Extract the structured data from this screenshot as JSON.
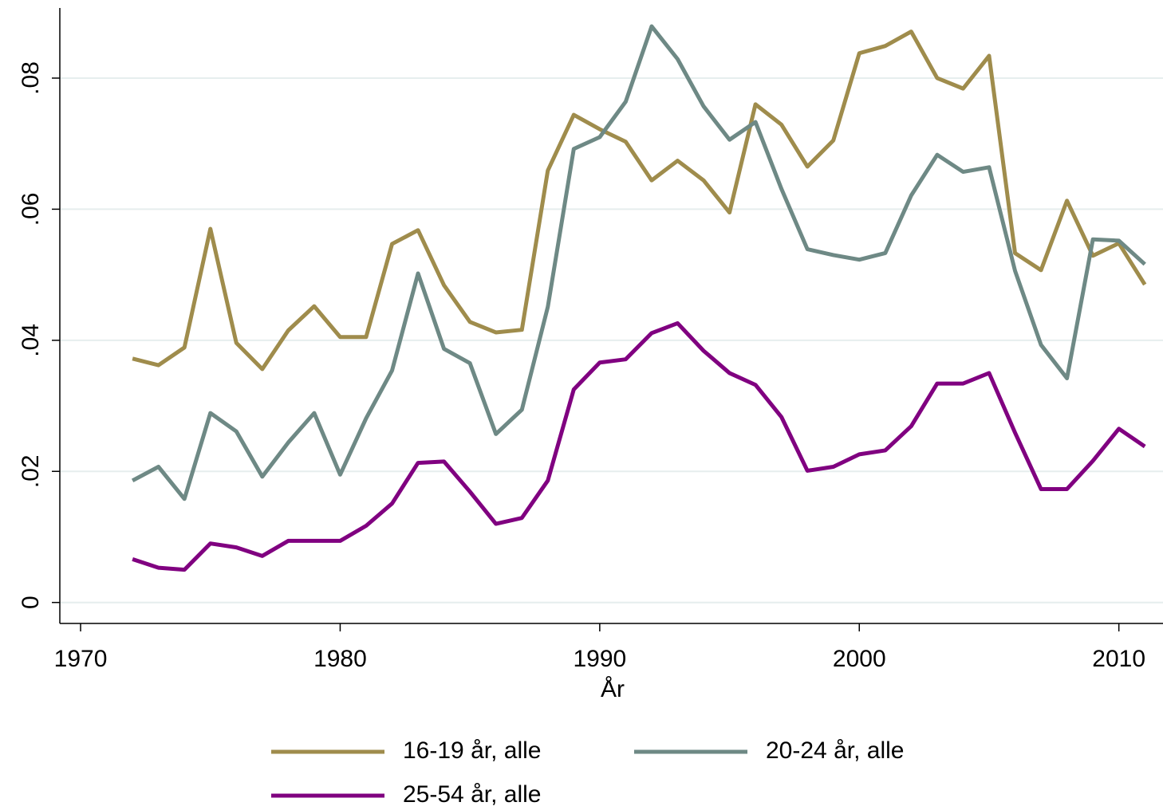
{
  "chart_data": {
    "type": "line",
    "x_label": "År",
    "x": [
      1972,
      1973,
      1974,
      1975,
      1976,
      1977,
      1978,
      1979,
      1980,
      1981,
      1982,
      1983,
      1984,
      1985,
      1986,
      1987,
      1988,
      1989,
      1990,
      1991,
      1992,
      1993,
      1994,
      1995,
      1996,
      1997,
      1998,
      1999,
      2000,
      2001,
      2002,
      2003,
      2004,
      2005,
      2006,
      2007,
      2008,
      2009,
      2010,
      2011
    ],
    "series": [
      {
        "name": "16-19 år, alle",
        "color": "#9f8c4c",
        "values": [
          0.0372,
          0.0362,
          0.0389,
          0.057,
          0.0396,
          0.0356,
          0.0415,
          0.0452,
          0.0405,
          0.0405,
          0.0547,
          0.0568,
          0.0484,
          0.0428,
          0.0412,
          0.0416,
          0.0659,
          0.0744,
          0.0722,
          0.0703,
          0.0644,
          0.0674,
          0.0644,
          0.0595,
          0.076,
          0.0729,
          0.0665,
          0.0705,
          0.0838,
          0.0849,
          0.0871,
          0.08,
          0.0784,
          0.0834,
          0.0533,
          0.0507,
          0.0613,
          0.0529,
          0.0548,
          0.0485
        ]
      },
      {
        "name": "20-24 år, alle",
        "color": "#6e8985",
        "values": [
          0.0186,
          0.0207,
          0.0158,
          0.0289,
          0.0261,
          0.0192,
          0.0244,
          0.0289,
          0.0195,
          0.0281,
          0.0354,
          0.0502,
          0.0387,
          0.0365,
          0.0257,
          0.0294,
          0.0451,
          0.0692,
          0.071,
          0.0764,
          0.0879,
          0.0829,
          0.0757,
          0.0706,
          0.0733,
          0.0631,
          0.0539,
          0.053,
          0.0523,
          0.0533,
          0.0621,
          0.0683,
          0.0657,
          0.0664,
          0.0506,
          0.0393,
          0.0342,
          0.0554,
          0.0552,
          0.0516
        ]
      },
      {
        "name": "25-54 år, alle",
        "color": "#800080",
        "values": [
          0.0066,
          0.0053,
          0.005,
          0.009,
          0.0084,
          0.0071,
          0.0094,
          0.0094,
          0.0094,
          0.0117,
          0.0151,
          0.0213,
          0.0215,
          0.0169,
          0.012,
          0.0129,
          0.0186,
          0.0325,
          0.0366,
          0.0371,
          0.0411,
          0.0426,
          0.0384,
          0.035,
          0.0332,
          0.0283,
          0.0201,
          0.0207,
          0.0226,
          0.0232,
          0.0269,
          0.0334,
          0.0334,
          0.035,
          0.0259,
          0.0173,
          0.0173,
          0.0216,
          0.0265,
          0.0238
        ]
      }
    ],
    "xlim": [
      1969.2,
      2011.7
    ],
    "xticks": [
      1970,
      1980,
      1990,
      2000,
      2010
    ],
    "ylim": [
      -0.0032,
      0.0907
    ],
    "yticks": [
      0,
      {
        "value": 0.02,
        "label": ".02"
      },
      {
        "value": 0.04,
        "label": ".04"
      },
      {
        "value": 0.06,
        "label": ".06"
      },
      {
        "value": 0.08,
        "label": ".08"
      }
    ],
    "grid": true,
    "legend": "bottom"
  }
}
